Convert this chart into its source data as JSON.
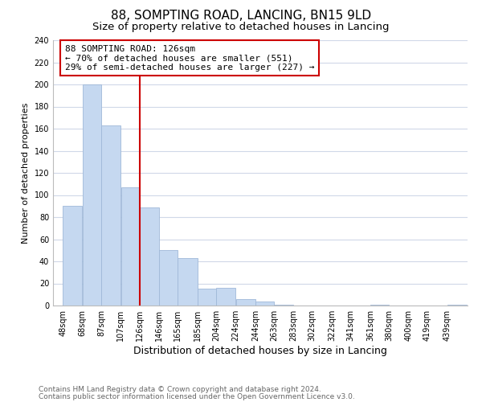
{
  "title": "88, SOMPTING ROAD, LANCING, BN15 9LD",
  "subtitle": "Size of property relative to detached houses in Lancing",
  "xlabel": "Distribution of detached houses by size in Lancing",
  "ylabel": "Number of detached properties",
  "bar_values": [
    90,
    200,
    163,
    107,
    89,
    50,
    43,
    15,
    16,
    6,
    4,
    1,
    0,
    0,
    0,
    0,
    1,
    0,
    0,
    0,
    1
  ],
  "bar_left_edges": [
    48,
    68,
    87,
    107,
    126,
    146,
    165,
    185,
    204,
    224,
    244,
    263,
    283,
    302,
    322,
    341,
    361,
    380,
    400,
    419,
    439
  ],
  "bar_widths": [
    20,
    19,
    20,
    19,
    20,
    19,
    20,
    19,
    20,
    20,
    19,
    20,
    19,
    20,
    19,
    20,
    19,
    20,
    19,
    20,
    20
  ],
  "x_tick_labels": [
    "48sqm",
    "68sqm",
    "87sqm",
    "107sqm",
    "126sqm",
    "146sqm",
    "165sqm",
    "185sqm",
    "204sqm",
    "224sqm",
    "244sqm",
    "263sqm",
    "283sqm",
    "302sqm",
    "322sqm",
    "341sqm",
    "361sqm",
    "380sqm",
    "400sqm",
    "419sqm",
    "439sqm"
  ],
  "x_tick_positions": [
    48,
    68,
    87,
    107,
    126,
    146,
    165,
    185,
    204,
    224,
    244,
    263,
    283,
    302,
    322,
    341,
    361,
    380,
    400,
    419,
    439
  ],
  "ylim": [
    0,
    240
  ],
  "yticks": [
    0,
    20,
    40,
    60,
    80,
    100,
    120,
    140,
    160,
    180,
    200,
    220,
    240
  ],
  "bar_color": "#c5d8f0",
  "bar_edge_color": "#a0b8d8",
  "vline_x": 126,
  "vline_color": "#cc0000",
  "annotation_text": "88 SOMPTING ROAD: 126sqm\n← 70% of detached houses are smaller (551)\n29% of semi-detached houses are larger (227) →",
  "footer_line1": "Contains HM Land Registry data © Crown copyright and database right 2024.",
  "footer_line2": "Contains public sector information licensed under the Open Government Licence v3.0.",
  "background_color": "#ffffff",
  "grid_color": "#d0d8e8",
  "title_fontsize": 11,
  "subtitle_fontsize": 9.5,
  "xlabel_fontsize": 9,
  "ylabel_fontsize": 8,
  "tick_fontsize": 7,
  "annotation_fontsize": 8,
  "footer_fontsize": 6.5
}
